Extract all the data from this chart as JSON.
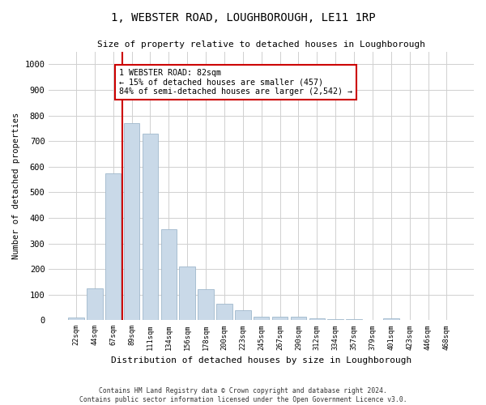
{
  "title": "1, WEBSTER ROAD, LOUGHBOROUGH, LE11 1RP",
  "subtitle": "Size of property relative to detached houses in Loughborough",
  "xlabel": "Distribution of detached houses by size in Loughborough",
  "ylabel": "Number of detached properties",
  "footer_line1": "Contains HM Land Registry data © Crown copyright and database right 2024.",
  "footer_line2": "Contains public sector information licensed under the Open Government Licence v3.0.",
  "bar_labels": [
    "22sqm",
    "44sqm",
    "67sqm",
    "89sqm",
    "111sqm",
    "134sqm",
    "156sqm",
    "178sqm",
    "200sqm",
    "223sqm",
    "245sqm",
    "267sqm",
    "290sqm",
    "312sqm",
    "334sqm",
    "357sqm",
    "379sqm",
    "401sqm",
    "423sqm",
    "446sqm",
    "468sqm"
  ],
  "bar_values": [
    10,
    125,
    575,
    770,
    730,
    355,
    210,
    120,
    65,
    38,
    15,
    15,
    15,
    8,
    5,
    5,
    0,
    8,
    0,
    0,
    0
  ],
  "bar_color": "#c9d9e8",
  "bar_edgecolor": "#a0b8cc",
  "vline_x_idx": 3,
  "vline_color": "#cc0000",
  "annotation_text": "1 WEBSTER ROAD: 82sqm\n← 15% of detached houses are smaller (457)\n84% of semi-detached houses are larger (2,542) →",
  "annotation_box_color": "#ffffff",
  "annotation_box_edgecolor": "#cc0000",
  "ylim": [
    0,
    1050
  ],
  "yticks": [
    0,
    100,
    200,
    300,
    400,
    500,
    600,
    700,
    800,
    900,
    1000
  ],
  "bg_color": "#ffffff",
  "plot_bg_color": "#ffffff",
  "grid_color": "#d0d0d0"
}
